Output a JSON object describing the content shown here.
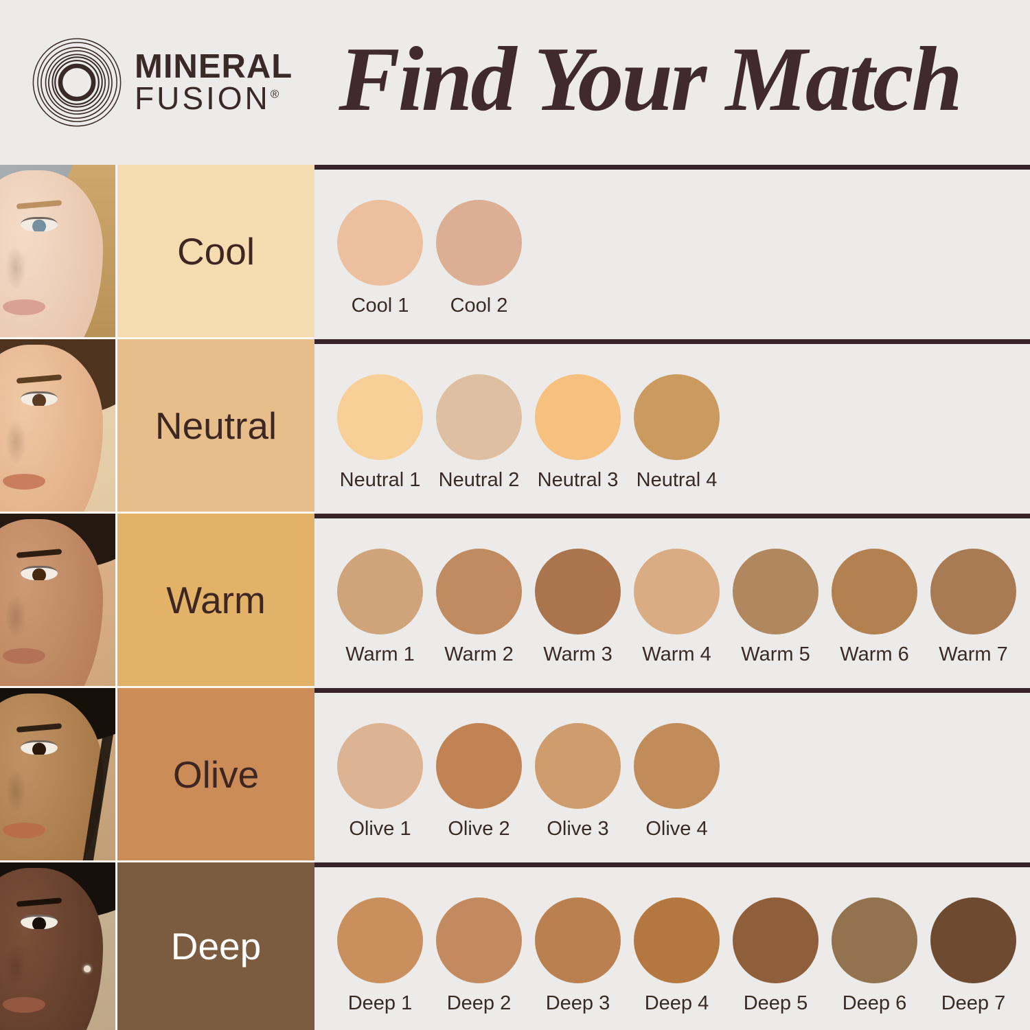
{
  "header": {
    "brand": {
      "line1": "MINERAL",
      "line2": "FUSION",
      "registered": "®"
    },
    "title": "Find Your Match"
  },
  "colors": {
    "background": "#ECEBE9",
    "divider_rule": "#38232A",
    "title_text": "#402A2E",
    "brand_text": "#3A2A27",
    "row_label_text_dark": "#3E2723",
    "row_label_text_light": "#FFFFFF",
    "shade_name_text": "#3A2A26"
  },
  "rows": [
    {
      "label": "Cool",
      "label_bg": "#F6DCB1",
      "label_text_color": "#3E2723",
      "shades": [
        {
          "name": "Cool 1",
          "hex": "#ECC09E"
        },
        {
          "name": "Cool 2",
          "hex": "#DCAE94"
        }
      ]
    },
    {
      "label": "Neutral",
      "label_bg": "#E7BD8A",
      "label_text_color": "#3E2723",
      "shades": [
        {
          "name": "Neutral 1",
          "hex": "#F8CF97"
        },
        {
          "name": "Neutral 2",
          "hex": "#DFBFA2"
        },
        {
          "name": "Neutral 3",
          "hex": "#F6C07E"
        },
        {
          "name": "Neutral 4",
          "hex": "#CB9A5F"
        }
      ]
    },
    {
      "label": "Warm",
      "label_bg": "#E2B269",
      "label_text_color": "#3E2723",
      "shades": [
        {
          "name": "Warm 1",
          "hex": "#CFA47B"
        },
        {
          "name": "Warm 2",
          "hex": "#C08B60"
        },
        {
          "name": "Warm 3",
          "hex": "#AA744C"
        },
        {
          "name": "Warm 4",
          "hex": "#D9AC83"
        },
        {
          "name": "Warm 5",
          "hex": "#B1875F"
        },
        {
          "name": "Warm 6",
          "hex": "#B2814F"
        },
        {
          "name": "Warm 7",
          "hex": "#A97B55"
        }
      ]
    },
    {
      "label": "Olive",
      "label_bg": "#CB8C57",
      "label_text_color": "#3E2723",
      "shades": [
        {
          "name": "Olive 1",
          "hex": "#DCB494"
        },
        {
          "name": "Olive 2",
          "hex": "#C28354"
        },
        {
          "name": "Olive 3",
          "hex": "#CF9C6D"
        },
        {
          "name": "Olive 4",
          "hex": "#C18B5A"
        }
      ]
    },
    {
      "label": "Deep",
      "label_bg": "#7B5C41",
      "label_text_color": "#FFFFFF",
      "shades": [
        {
          "name": "Deep 1",
          "hex": "#C98F5C"
        },
        {
          "name": "Deep 2",
          "hex": "#C28A5E"
        },
        {
          "name": "Deep 3",
          "hex": "#BB8050"
        },
        {
          "name": "Deep 4",
          "hex": "#B3773F"
        },
        {
          "name": "Deep 5",
          "hex": "#8F5F3C"
        },
        {
          "name": "Deep 6",
          "hex": "#937250"
        },
        {
          "name": "Deep 7",
          "hex": "#6E4A30"
        }
      ]
    }
  ]
}
